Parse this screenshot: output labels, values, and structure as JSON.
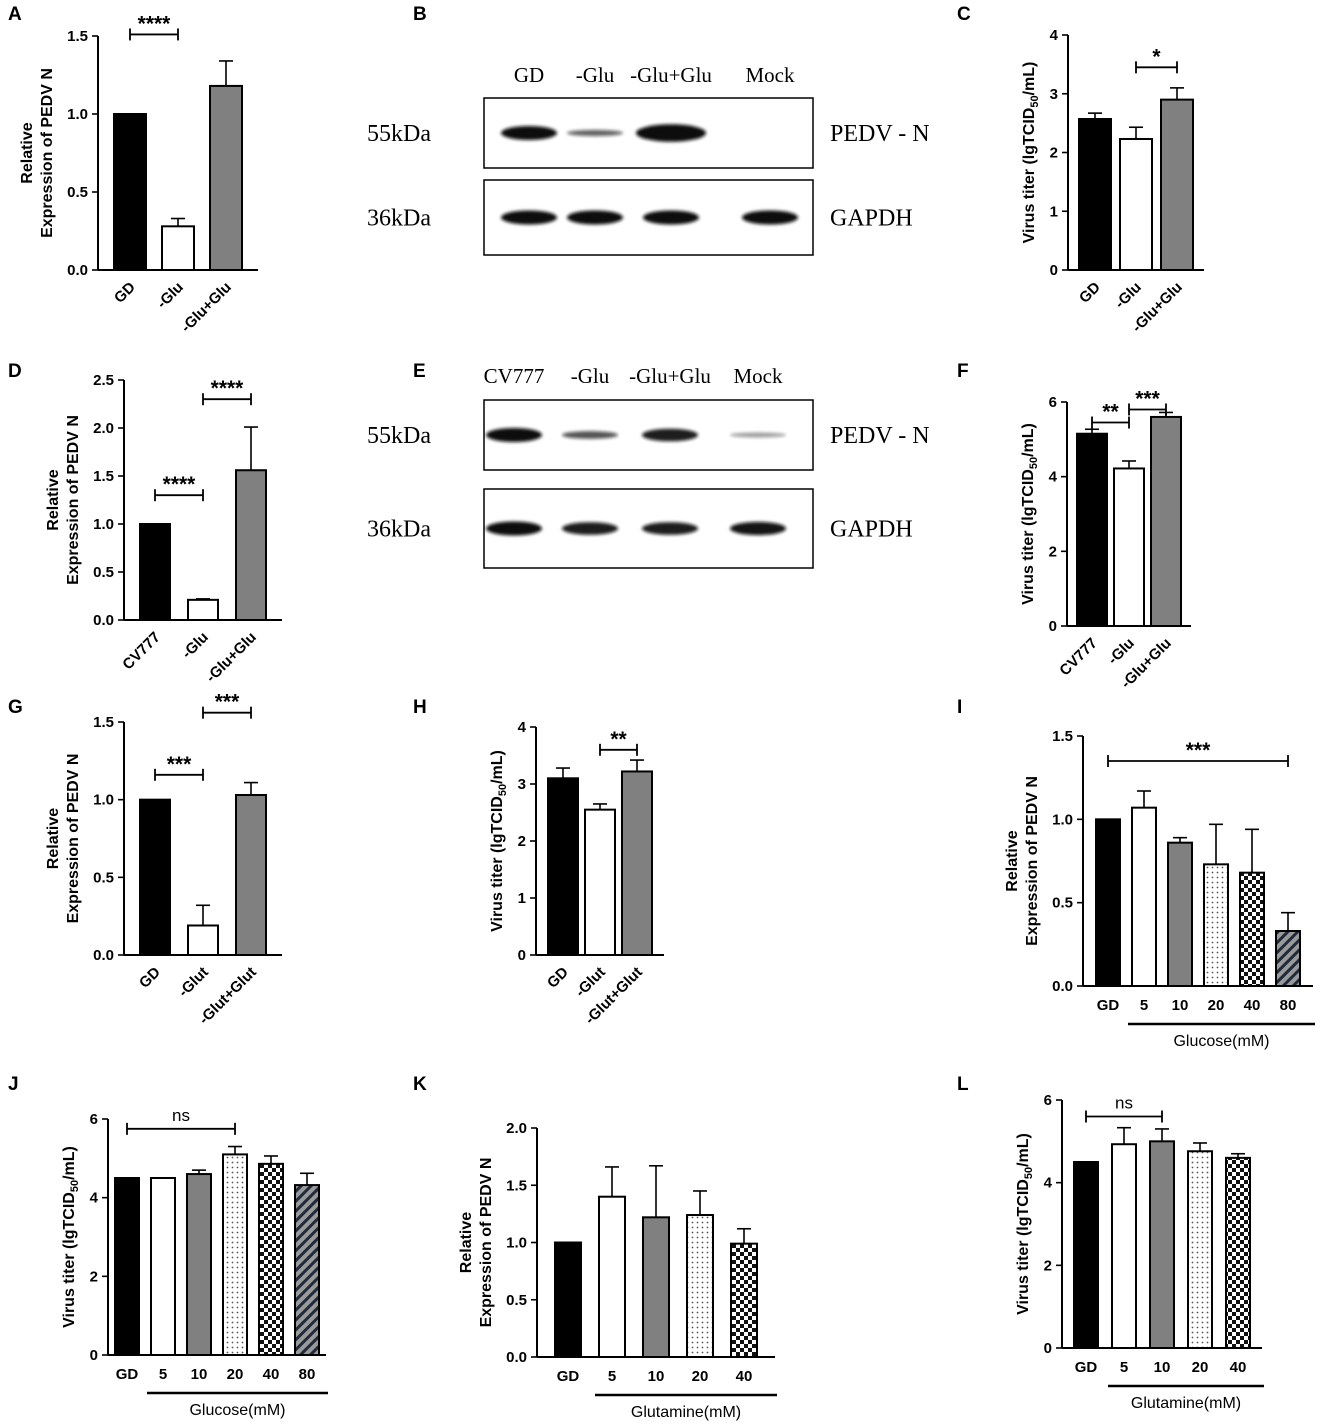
{
  "colors": {
    "black": "#000000",
    "white": "#ffffff",
    "gray": "#808080",
    "band": "#111111"
  },
  "blots": [
    {
      "panel": "B",
      "headers": [
        "GD",
        "-Glu",
        "-Glu+Glu",
        "Mock"
      ],
      "sizes": [
        "55kDa",
        "36kDa"
      ],
      "proteins": [
        "PEDV - N",
        "GAPDH"
      ],
      "band_intensity": [
        [
          1.0,
          0.45,
          1.25,
          0.0
        ],
        [
          1.0,
          1.0,
          1.0,
          1.0
        ]
      ]
    },
    {
      "panel": "E",
      "headers": [
        "CV777",
        "-Glu",
        "-Glu+Glu",
        "Mock"
      ],
      "sizes": [
        "55kDa",
        "36kDa"
      ],
      "proteins": [
        "PEDV - N",
        "GAPDH"
      ],
      "band_intensity": [
        [
          1.0,
          0.55,
          0.9,
          0.08
        ],
        [
          1.0,
          0.9,
          0.9,
          0.95
        ]
      ]
    }
  ],
  "chart_data": [
    {
      "panel": "A",
      "type": "bar",
      "ylabel": [
        "Relative",
        "Expression of PEDV N"
      ],
      "ylim": [
        0,
        1.5
      ],
      "yticks": [
        "0.0",
        "0.5",
        "1.0",
        "1.5"
      ],
      "categories": [
        "GD",
        "-Glu",
        "-Glu+Glu"
      ],
      "values": [
        1.0,
        0.28,
        1.18
      ],
      "errors": [
        0,
        0.05,
        0.16
      ],
      "fills": [
        "black",
        "white",
        "gray"
      ],
      "sig": [
        {
          "from": 0,
          "to": 1,
          "y": 1.51,
          "label": "****"
        },
        {
          "from": 1,
          "to": 2,
          "y": 1.89,
          "label": "****"
        }
      ]
    },
    {
      "panel": "C",
      "type": "bar",
      "ylabel": [
        "Virus titer (lgTCID",
        "50",
        "/mL)"
      ],
      "ylim": [
        0,
        4
      ],
      "yticks": [
        "0",
        "1",
        "2",
        "3",
        "4"
      ],
      "categories": [
        "GD",
        "-Glu",
        "-Glu+Glu"
      ],
      "values": [
        2.57,
        2.23,
        2.9
      ],
      "errors": [
        0.1,
        0.2,
        0.2
      ],
      "fills": [
        "black",
        "white",
        "gray"
      ],
      "sig": [
        {
          "from": 1,
          "to": 2,
          "y": 3.45,
          "label": "*"
        }
      ]
    },
    {
      "panel": "D",
      "type": "bar",
      "ylabel": [
        "Relative",
        "Expression of PEDV N"
      ],
      "ylim": [
        0,
        2.5
      ],
      "yticks": [
        "0.0",
        "0.5",
        "1.0",
        "1.5",
        "2.0",
        "2.5"
      ],
      "categories": [
        "CV777",
        "-Glu",
        "-Glu+Glu"
      ],
      "values": [
        1.0,
        0.21,
        1.56
      ],
      "errors": [
        0,
        0.01,
        0.45
      ],
      "fills": [
        "black",
        "white",
        "gray"
      ],
      "sig": [
        {
          "from": 0,
          "to": 1,
          "y": 1.3,
          "label": "****"
        },
        {
          "from": 1,
          "to": 2,
          "y": 2.3,
          "label": "****"
        }
      ]
    },
    {
      "panel": "F",
      "type": "bar",
      "ylabel": [
        "Virus titer (lgTCID",
        "50",
        "/mL)"
      ],
      "ylim": [
        0,
        6
      ],
      "yticks": [
        "0",
        "2",
        "4",
        "6"
      ],
      "categories": [
        "CV777",
        "-Glu",
        "-Glu+Glu"
      ],
      "values": [
        5.15,
        4.22,
        5.6
      ],
      "errors": [
        0.12,
        0.2,
        0.12
      ],
      "fills": [
        "black",
        "white",
        "gray"
      ],
      "sig": [
        {
          "from": 0,
          "to": 1,
          "y": 5.45,
          "label": "**"
        },
        {
          "from": 1,
          "to": 2,
          "y": 5.8,
          "label": "***"
        }
      ]
    },
    {
      "panel": "G",
      "type": "bar",
      "ylabel": [
        "Relative",
        "Expression of PEDV N"
      ],
      "ylim": [
        0,
        1.5
      ],
      "yticks": [
        "0.0",
        "0.5",
        "1.0",
        "1.5"
      ],
      "categories": [
        "GD",
        "-Glut",
        "-Glut+Glut"
      ],
      "values": [
        1.0,
        0.19,
        1.03
      ],
      "errors": [
        0,
        0.13,
        0.08
      ],
      "fills": [
        "black",
        "white",
        "gray"
      ],
      "sig": [
        {
          "from": 0,
          "to": 1,
          "y": 1.16,
          "label": "***"
        },
        {
          "from": 1,
          "to": 2,
          "y": 1.56,
          "label": "***"
        }
      ]
    },
    {
      "panel": "H",
      "type": "bar",
      "ylabel": [
        "Virus titer (lgTCID",
        "50",
        "/mL)"
      ],
      "ylim": [
        0,
        4
      ],
      "yticks": [
        "0",
        "1",
        "2",
        "3",
        "4"
      ],
      "categories": [
        "GD",
        "-Glut",
        "-Glut+Glut"
      ],
      "values": [
        3.1,
        2.55,
        3.22
      ],
      "errors": [
        0.18,
        0.1,
        0.2
      ],
      "fills": [
        "black",
        "white",
        "gray"
      ],
      "sig": [
        {
          "from": 1,
          "to": 2,
          "y": 3.6,
          "label": "**"
        }
      ]
    },
    {
      "panel": "I",
      "type": "bar",
      "ylabel": [
        "Relative",
        "Expression of PEDV N"
      ],
      "ylim": [
        0,
        1.5
      ],
      "yticks": [
        "0.0",
        "0.5",
        "1.0",
        "1.5"
      ],
      "categories": [
        "GD",
        "5",
        "10",
        "20",
        "40",
        "80"
      ],
      "values": [
        1.0,
        1.07,
        0.86,
        0.73,
        0.68,
        0.33
      ],
      "errors": [
        0,
        0.1,
        0.03,
        0.24,
        0.26,
        0.11
      ],
      "fills": [
        "black",
        "white",
        "gray",
        "dots",
        "checker",
        "hatch"
      ],
      "group_label": "Glucose(mM)",
      "group_from": 1,
      "sig": [
        {
          "from": 0,
          "to": 5,
          "y": 1.35,
          "label": "***"
        }
      ]
    },
    {
      "panel": "J",
      "type": "bar",
      "ylabel": [
        "Virus titer (lgTCID",
        "50",
        "/mL)"
      ],
      "ylim": [
        0,
        6
      ],
      "yticks": [
        "0",
        "2",
        "4",
        "6"
      ],
      "categories": [
        "GD",
        "5",
        "10",
        "20",
        "40",
        "80"
      ],
      "values": [
        4.5,
        4.5,
        4.6,
        5.1,
        4.86,
        4.32
      ],
      "errors": [
        0,
        0,
        0.1,
        0.2,
        0.2,
        0.3
      ],
      "fills": [
        "black",
        "white",
        "gray",
        "dots",
        "checker",
        "hatch"
      ],
      "group_label": "Glucose(mM)",
      "group_from": 1,
      "sig": [
        {
          "from": 0,
          "to": 3,
          "y": 5.75,
          "label": "ns"
        }
      ]
    },
    {
      "panel": "K",
      "type": "bar",
      "ylabel": [
        "Relative",
        "Expression of PEDV N"
      ],
      "ylim": [
        0,
        2.0
      ],
      "yticks": [
        "0.0",
        "0.5",
        "1.0",
        "1.5",
        "2.0"
      ],
      "categories": [
        "GD",
        "5",
        "10",
        "20",
        "40"
      ],
      "values": [
        1.0,
        1.4,
        1.22,
        1.24,
        0.99
      ],
      "errors": [
        0,
        0.26,
        0.45,
        0.21,
        0.13
      ],
      "fills": [
        "black",
        "white",
        "gray",
        "dots",
        "checker"
      ],
      "group_label": "Glutamine(mM)",
      "group_from": 1,
      "sig": []
    },
    {
      "panel": "L",
      "type": "bar",
      "ylabel": [
        "Virus titer (lgTCID",
        "50",
        "/mL)"
      ],
      "ylim": [
        0,
        6
      ],
      "yticks": [
        "0",
        "2",
        "4",
        "6"
      ],
      "categories": [
        "GD",
        "5",
        "10",
        "20",
        "40"
      ],
      "values": [
        4.5,
        4.93,
        5.0,
        4.76,
        4.6
      ],
      "errors": [
        0,
        0.4,
        0.3,
        0.2,
        0.1
      ],
      "fills": [
        "black",
        "white",
        "gray",
        "dots",
        "checker"
      ],
      "group_label": "Glutamine(mM)",
      "group_from": 1,
      "sig": [
        {
          "from": 0,
          "to": 2,
          "y": 5.6,
          "label": "ns"
        }
      ]
    }
  ]
}
